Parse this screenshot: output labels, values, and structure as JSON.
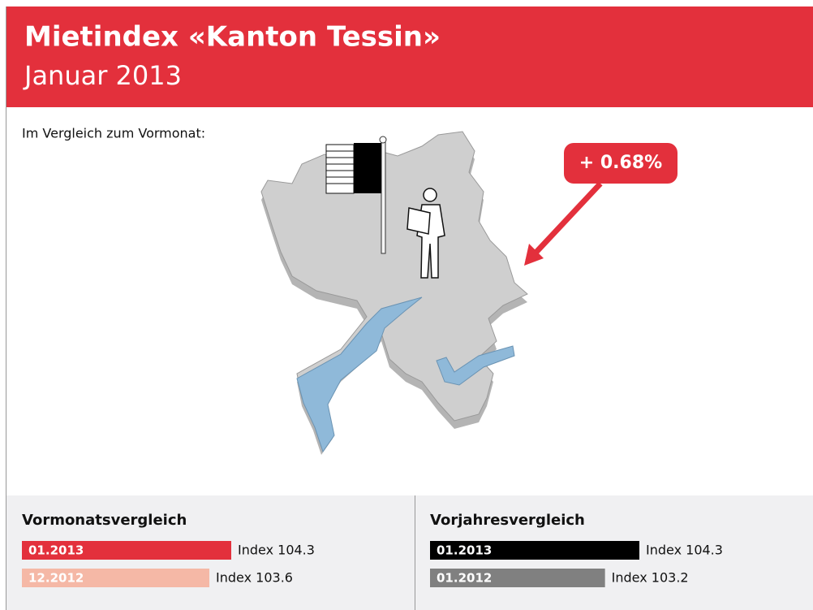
{
  "header": {
    "title": "Mietindex «Kanton Tessin»",
    "subtitle": "Januar 2013"
  },
  "intro": "Im Vergleich zum Vormonat:",
  "callout": "+ 0.68%",
  "panels": [
    {
      "title": "Vormonatsvergleich",
      "xlim": [
        97.6,
        104.3
      ],
      "categories": [
        "01.2013",
        "12.2012"
      ],
      "values": [
        104.3,
        103.6
      ],
      "value_labels": [
        "Index 104.3",
        "Index 103.6"
      ],
      "colors": [
        "#e3303c",
        "#f5b8a6"
      ]
    },
    {
      "title": "Vorjahresvergleich",
      "xlim": [
        97.6,
        104.3
      ],
      "categories": [
        "01.2013",
        "01.2012"
      ],
      "values": [
        104.3,
        103.2
      ],
      "value_labels": [
        "Index 104.3",
        "Index 103.2"
      ],
      "colors": [
        "#000000",
        "#808080"
      ]
    }
  ]
}
